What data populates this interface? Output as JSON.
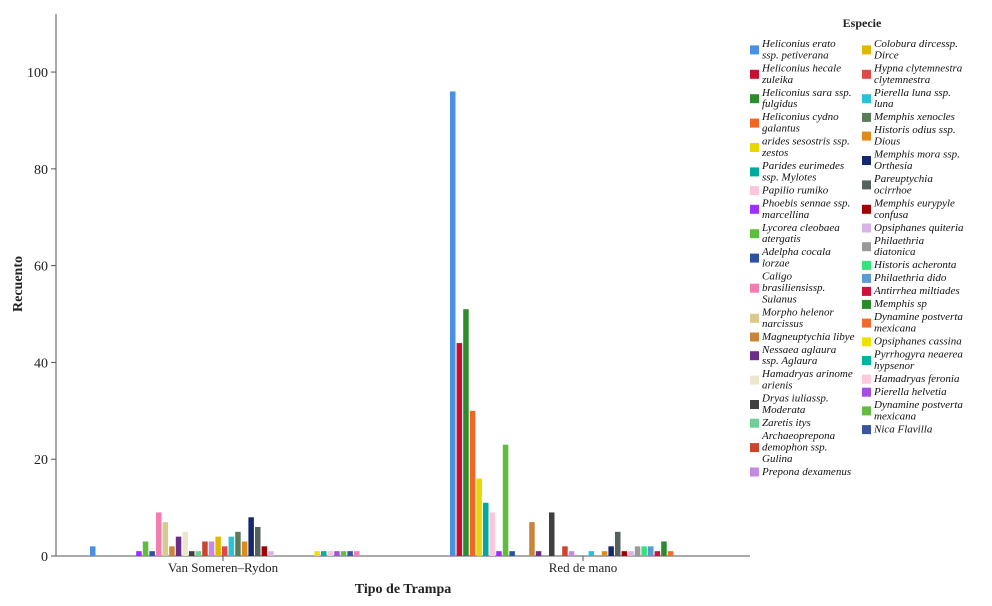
{
  "chart_data": {
    "type": "bar",
    "xlabel": "Tipo de Trampa",
    "ylabel": "Recuento",
    "ylim": [
      0,
      112
    ],
    "yticks": [
      0,
      20,
      40,
      60,
      80,
      100
    ],
    "grid": false,
    "legend_title": "Especie",
    "legend_position": "right",
    "categories": [
      "Van Someren–Rydon",
      "Red de mano"
    ],
    "series": [
      {
        "name": "Heliconius erato ssp. petiverana",
        "color": "#4a90e2",
        "values": [
          2,
          96
        ]
      },
      {
        "name": "Heliconius hecale zuleika",
        "color": "#c8102e",
        "values": [
          0,
          44
        ]
      },
      {
        "name": "Heliconius sara ssp. fulgidus",
        "color": "#2e8b2e",
        "values": [
          0,
          51
        ]
      },
      {
        "name": "Heliconius cydno galantus",
        "color": "#f26522",
        "values": [
          0,
          30
        ]
      },
      {
        "name": "arides sesostris ssp. zestos",
        "color": "#e6d800",
        "values": [
          0,
          16
        ]
      },
      {
        "name": "Parides eurimedes ssp. Mylotes",
        "color": "#00a99d",
        "values": [
          0,
          11
        ]
      },
      {
        "name": "Papilio rumiko",
        "color": "#f9c6dc",
        "values": [
          0,
          9
        ]
      },
      {
        "name": "Phoebis sennae ssp. marcellina",
        "color": "#9b30ff",
        "values": [
          1,
          1
        ]
      },
      {
        "name": "Lycorea cleobaea atergatis",
        "color": "#5ebd3e",
        "values": [
          3,
          23
        ]
      },
      {
        "name": "Adelpha cocala lorzae",
        "color": "#2f4f9f",
        "values": [
          1,
          1
        ]
      },
      {
        "name": "Caligo brasiliensissp. Sulanus",
        "color": "#f27eb0",
        "values": [
          9,
          0
        ]
      },
      {
        "name": "Morpho helenor narcissus",
        "color": "#d8c98f",
        "values": [
          7,
          0
        ]
      },
      {
        "name": "Magneuptychia libye",
        "color": "#c8843a",
        "values": [
          2,
          7
        ]
      },
      {
        "name": "Nessaea aglaura ssp. Aglaura",
        "color": "#6b2d86",
        "values": [
          4,
          1
        ]
      },
      {
        "name": "Hamadryas arinome arienis",
        "color": "#ede6cf",
        "values": [
          5,
          0
        ]
      },
      {
        "name": "Dryas iuliassp. Moderata",
        "color": "#3f3f3f",
        "values": [
          1,
          9
        ]
      },
      {
        "name": "Zaretis itys",
        "color": "#6fcf97",
        "values": [
          1,
          0
        ]
      },
      {
        "name": "Archaeoprepona demophon ssp. Gulina",
        "color": "#c8452e",
        "values": [
          3,
          2
        ]
      },
      {
        "name": "Prepona dexamenus",
        "color": "#c68ae0",
        "values": [
          3,
          1
        ]
      },
      {
        "name": "Colobura dircessp. Dirce",
        "color": "#e0b800",
        "values": [
          4,
          0
        ]
      },
      {
        "name": "Hypna clytemnestra clytemnestra",
        "color": "#e04848",
        "values": [
          2,
          0
        ]
      },
      {
        "name": "Pierella luna ssp. luna",
        "color": "#27c3d6",
        "values": [
          4,
          1
        ]
      },
      {
        "name": "Memphis xenocles",
        "color": "#5a7a5a",
        "values": [
          5,
          0
        ]
      },
      {
        "name": "Historis odius ssp. Dious",
        "color": "#e08a1e",
        "values": [
          3,
          1
        ]
      },
      {
        "name": "Memphis mora ssp. Orthesia",
        "color": "#14286e",
        "values": [
          8,
          2
        ]
      },
      {
        "name": "Pareuptychia ocirrhoe",
        "color": "#56605e",
        "values": [
          6,
          5
        ]
      },
      {
        "name": "Memphis eurypyle confusa",
        "color": "#a00000",
        "values": [
          2,
          1
        ]
      },
      {
        "name": "Opsiphanes quiteria",
        "color": "#d8b4e6",
        "values": [
          1,
          1
        ]
      },
      {
        "name": "Philaethria diatonica",
        "color": "#999999",
        "values": [
          0,
          2
        ]
      },
      {
        "name": "Historis acheronta",
        "color": "#39e07a",
        "values": [
          0,
          2
        ]
      },
      {
        "name": "Philaethria dido",
        "color": "#5b9bd5",
        "values": [
          0,
          2
        ]
      },
      {
        "name": "Antirrhea miltiades",
        "color": "#d0103a",
        "values": [
          0,
          1
        ]
      },
      {
        "name": "Memphis sp",
        "color": "#2b8a2b",
        "values": [
          0,
          3
        ]
      },
      {
        "name": "Dynamine postverta mexicana",
        "color": "#f26b2e",
        "values": [
          0,
          1
        ]
      },
      {
        "name": "Opsiphanes cassina",
        "color": "#f0e000",
        "values": [
          1,
          0
        ]
      },
      {
        "name": "Pyrrhogyra neaerea hypsenor",
        "color": "#00b3a0",
        "values": [
          1,
          0
        ]
      },
      {
        "name": "Hamadryas feronia",
        "color": "#fbc8dc",
        "values": [
          1,
          0
        ]
      },
      {
        "name": "Pierella helvetia",
        "color": "#a64ee0",
        "values": [
          1,
          0
        ]
      },
      {
        "name": "Dynamine postverta mexicana",
        "color": "#66bb44",
        "values": [
          1,
          0
        ]
      },
      {
        "name": "Nica Flavilla",
        "color": "#3a55a0",
        "values": [
          1,
          0
        ]
      },
      {
        "name": "",
        "color": "#f27eb0",
        "values": [
          1,
          0
        ]
      }
    ],
    "legend_columns": [
      [
        {
          "lines": [
            "Heliconius erato",
            "ssp. petiverana"
          ],
          "color": "#4a90e2"
        },
        {
          "lines": [
            "Heliconius hecale",
            "zuleika"
          ],
          "color": "#c8102e"
        },
        {
          "lines": [
            "Heliconius sara ssp.",
            "fulgidus"
          ],
          "color": "#2e8b2e"
        },
        {
          "lines": [
            "Heliconius cydno",
            "galantus"
          ],
          "color": "#f26522"
        },
        {
          "lines": [
            "arides sesostris ssp.",
            "zestos"
          ],
          "color": "#e6d800"
        },
        {
          "lines": [
            "Parides eurimedes",
            "ssp. Mylotes"
          ],
          "color": "#00a99d"
        },
        {
          "lines": [
            "Papilio rumiko"
          ],
          "color": "#f9c6dc"
        },
        {
          "lines": [
            "Phoebis sennae ssp.",
            "marcellina"
          ],
          "color": "#9b30ff"
        },
        {
          "lines": [
            "Lycorea cleobaea",
            "atergatis"
          ],
          "color": "#5ebd3e"
        },
        {
          "lines": [
            "Adelpha cocala",
            "lorzae"
          ],
          "color": "#2f4f9f"
        },
        {
          "lines": [
            "Caligo",
            "brasiliensissp.",
            "Sulanus"
          ],
          "color": "#f27eb0"
        },
        {
          "lines": [
            "Morpho helenor",
            "narcissus"
          ],
          "color": "#d8c98f"
        },
        {
          "lines": [
            "Magneuptychia libye"
          ],
          "color": "#c8843a"
        },
        {
          "lines": [
            "Nessaea aglaura",
            "ssp. Aglaura"
          ],
          "color": "#6b2d86"
        },
        {
          "lines": [
            "Hamadryas arinome",
            "arienis"
          ],
          "color": "#ede6cf"
        },
        {
          "lines": [
            "Dryas iuliassp.",
            "Moderata"
          ],
          "color": "#3f3f3f"
        },
        {
          "lines": [
            "Zaretis itys"
          ],
          "color": "#6fcf97"
        },
        {
          "lines": [
            "Archaeoprepona",
            "demophon ssp.",
            "Gulina"
          ],
          "color": "#c8452e"
        },
        {
          "lines": [
            "Prepona dexamenus"
          ],
          "color": "#c68ae0"
        }
      ],
      [
        {
          "lines": [
            "Colobura dircessp.",
            "Dirce"
          ],
          "color": "#e0b800"
        },
        {
          "lines": [
            "Hypna clytemnestra",
            "clytemnestra"
          ],
          "color": "#e04848"
        },
        {
          "lines": [
            "Pierella luna ssp.",
            "luna"
          ],
          "color": "#27c3d6"
        },
        {
          "lines": [
            "Memphis xenocles"
          ],
          "color": "#5a7a5a"
        },
        {
          "lines": [
            "Historis odius ssp.",
            "Dious"
          ],
          "color": "#e08a1e"
        },
        {
          "lines": [
            "Memphis mora ssp.",
            "Orthesia"
          ],
          "color": "#14286e"
        },
        {
          "lines": [
            "Pareuptychia",
            "ocirrhoe"
          ],
          "color": "#56605e"
        },
        {
          "lines": [
            "Memphis eurypyle",
            "confusa"
          ],
          "color": "#a00000"
        },
        {
          "lines": [
            "Opsiphanes quiteria"
          ],
          "color": "#d8b4e6"
        },
        {
          "lines": [
            "Philaethria",
            "diatonica"
          ],
          "color": "#999999"
        },
        {
          "lines": [
            "Historis acheronta"
          ],
          "color": "#39e07a"
        },
        {
          "lines": [
            "Philaethria dido"
          ],
          "color": "#5b9bd5"
        },
        {
          "lines": [
            "Antirrhea miltiades"
          ],
          "color": "#d0103a"
        },
        {
          "lines": [
            "Memphis sp"
          ],
          "color": "#2b8a2b"
        },
        {
          "lines": [
            "Dynamine postverta",
            "mexicana"
          ],
          "color": "#f26b2e"
        },
        {
          "lines": [
            "Opsiphanes cassina"
          ],
          "color": "#f0e000"
        },
        {
          "lines": [
            "Pyrrhogyra neaerea",
            "hypsenor"
          ],
          "color": "#00b3a0"
        },
        {
          "lines": [
            "Hamadryas feronia"
          ],
          "color": "#fbc8dc"
        },
        {
          "lines": [
            "Pierella helvetia"
          ],
          "color": "#a64ee0"
        },
        {
          "lines": [
            "Dynamine postverta",
            "mexicana"
          ],
          "color": "#66bb44"
        },
        {
          "lines": [
            "Nica Flavilla"
          ],
          "color": "#3a55a0"
        }
      ]
    ]
  }
}
